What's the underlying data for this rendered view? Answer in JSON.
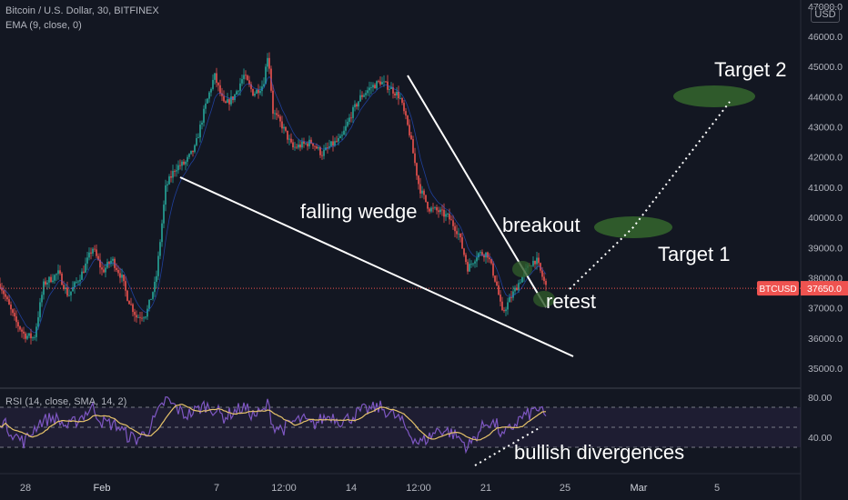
{
  "header": {
    "symbol_line": "Bitcoin / U.S. Dollar, 30, BITFINEX",
    "indicator_line": "EMA (9, close, 0)",
    "currency_badge": "USD",
    "rsi_line": "RSI (14, close, SMA, 14, 2)"
  },
  "price_tag": {
    "symbol": "BTCUSD",
    "value": "37650.0"
  },
  "colors": {
    "background": "#131722",
    "up": "#26a69a",
    "down": "#ef5350",
    "rsi_line": "#7e57c2",
    "rsi_sma": "#e6c36a",
    "target_fill": "#2f5a2b",
    "annotation": "#ffffff",
    "price_line": "#ef5350"
  },
  "chart_data": [
    {
      "type": "candlestick",
      "ylim": [
        34700,
        47000
      ],
      "y_ticks": [
        35000,
        36000,
        37000,
        38000,
        39000,
        40000,
        41000,
        42000,
        43000,
        44000,
        45000,
        46000,
        47000
      ],
      "y_tick_labels": [
        "35000.0",
        "36000.0",
        "37000.0",
        "38000.0",
        "39000.0",
        "40000.0",
        "41000.0",
        "42000.0",
        "43000.0",
        "44000.0",
        "45000.0",
        "46000.0",
        "47000.0"
      ],
      "x_tick_labels": [
        "28",
        "Feb",
        "7",
        "12:00",
        "14",
        "12:00",
        "21",
        "25",
        "Mar",
        "5"
      ],
      "last_price": 37650,
      "price_path": [
        [
          0,
          37800
        ],
        [
          3,
          36600
        ],
        [
          5,
          36100
        ],
        [
          7,
          36000
        ],
        [
          9,
          37800
        ],
        [
          12,
          38150
        ],
        [
          14,
          37400
        ],
        [
          17,
          38200
        ],
        [
          19,
          39000
        ],
        [
          21,
          38200
        ],
        [
          23,
          38600
        ],
        [
          25,
          38000
        ],
        [
          26,
          37400
        ],
        [
          28,
          36700
        ],
        [
          30,
          36800
        ],
        [
          32,
          37900
        ],
        [
          34,
          41000
        ],
        [
          36,
          41650
        ],
        [
          38,
          41800
        ],
        [
          40,
          42300
        ],
        [
          42,
          43600
        ],
        [
          44,
          44700
        ],
        [
          46,
          43700
        ],
        [
          48,
          44000
        ],
        [
          50,
          44700
        ],
        [
          52,
          44100
        ],
        [
          54,
          44400
        ],
        [
          55,
          45500
        ],
        [
          56,
          43500
        ],
        [
          58,
          43000
        ],
        [
          60,
          42300
        ],
        [
          62,
          42400
        ],
        [
          64,
          42500
        ],
        [
          66,
          42100
        ],
        [
          68,
          42400
        ],
        [
          70,
          42600
        ],
        [
          72,
          43400
        ],
        [
          74,
          44000
        ],
        [
          76,
          44300
        ],
        [
          78,
          44500
        ],
        [
          80,
          44300
        ],
        [
          82,
          44000
        ],
        [
          84,
          42800
        ],
        [
          86,
          41000
        ],
        [
          88,
          40300
        ],
        [
          90,
          40200
        ],
        [
          92,
          40000
        ],
        [
          94,
          39500
        ],
        [
          96,
          38300
        ],
        [
          98,
          38800
        ],
        [
          100,
          38800
        ],
        [
          102,
          37700
        ],
        [
          103,
          36800
        ],
        [
          105,
          37400
        ],
        [
          107,
          38000
        ],
        [
          109,
          38500
        ],
        [
          110,
          38600
        ],
        [
          112,
          37700
        ]
      ]
    },
    {
      "type": "line",
      "name": "RSI",
      "ylim": [
        20,
        85
      ],
      "y_ticks": [
        40,
        80
      ],
      "y_tick_labels": [
        "40.00",
        "80.00"
      ],
      "bands": [
        30,
        50,
        70
      ],
      "rsi_path": [
        [
          0,
          58
        ],
        [
          3,
          42
        ],
        [
          5,
          35
        ],
        [
          8,
          55
        ],
        [
          11,
          60
        ],
        [
          14,
          50
        ],
        [
          17,
          62
        ],
        [
          19,
          70
        ],
        [
          21,
          55
        ],
        [
          24,
          52
        ],
        [
          26,
          42
        ],
        [
          28,
          38
        ],
        [
          30,
          45
        ],
        [
          32,
          60
        ],
        [
          34,
          78
        ],
        [
          36,
          70
        ],
        [
          38,
          62
        ],
        [
          40,
          66
        ],
        [
          42,
          72
        ],
        [
          44,
          68
        ],
        [
          46,
          60
        ],
        [
          48,
          66
        ],
        [
          50,
          70
        ],
        [
          52,
          62
        ],
        [
          54,
          65
        ],
        [
          55,
          74
        ],
        [
          56,
          52
        ],
        [
          58,
          48
        ],
        [
          60,
          55
        ],
        [
          62,
          58
        ],
        [
          64,
          52
        ],
        [
          66,
          58
        ],
        [
          68,
          62
        ],
        [
          70,
          56
        ],
        [
          72,
          60
        ],
        [
          74,
          66
        ],
        [
          76,
          68
        ],
        [
          78,
          70
        ],
        [
          80,
          64
        ],
        [
          82,
          58
        ],
        [
          84,
          44
        ],
        [
          86,
          34
        ],
        [
          88,
          40
        ],
        [
          90,
          48
        ],
        [
          92,
          46
        ],
        [
          94,
          40
        ],
        [
          96,
          30
        ],
        [
          98,
          44
        ],
        [
          100,
          56
        ],
        [
          102,
          52
        ],
        [
          103,
          40
        ],
        [
          105,
          50
        ],
        [
          107,
          60
        ],
        [
          109,
          64
        ],
        [
          110,
          70
        ],
        [
          112,
          60
        ]
      ]
    }
  ],
  "annotations": {
    "falling_wedge": "falling wedge",
    "breakout": "breakout",
    "retest": "retest",
    "target1": "Target 1",
    "target2": "Target 2",
    "bullish_div": "bullish divergences"
  }
}
